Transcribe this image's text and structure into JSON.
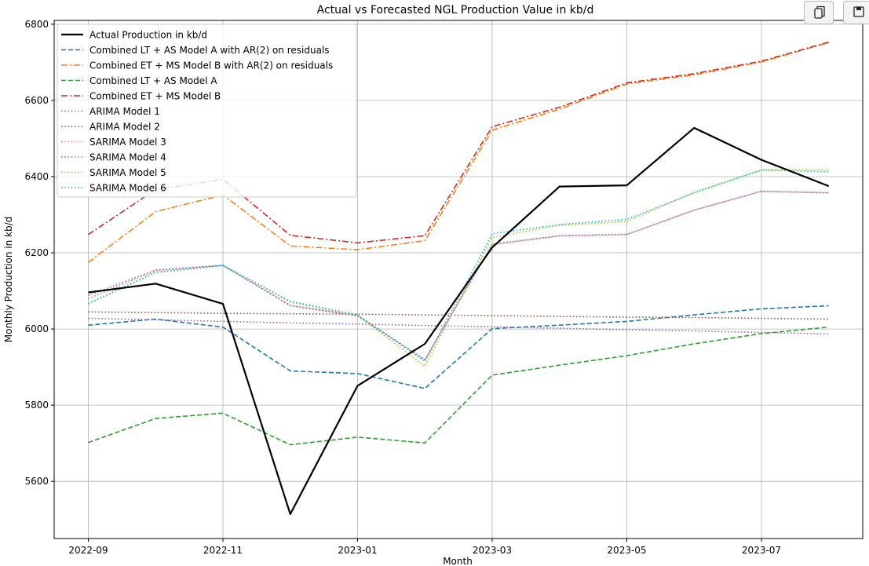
{
  "toolbar": {
    "buttons": [
      {
        "name": "copy-button",
        "icon": "copy-icon"
      },
      {
        "name": "save-button",
        "icon": "save-icon"
      }
    ]
  },
  "chart_data": {
    "type": "line",
    "title": "Actual vs Forecasted NGL Production Value in kb/d",
    "xlabel": "Month",
    "ylabel": "Monthly Production in kb/d",
    "x": [
      "2022-09",
      "2022-10",
      "2022-11",
      "2022-12",
      "2023-01",
      "2023-02",
      "2023-03",
      "2023-04",
      "2023-05",
      "2023-06",
      "2023-07",
      "2023-08"
    ],
    "x_ticks": [
      "2022-09",
      "2022-11",
      "2023-01",
      "2023-03",
      "2023-05",
      "2023-07"
    ],
    "ylim": [
      5450,
      6810
    ],
    "y_ticks": [
      5600,
      5800,
      6000,
      6200,
      6400,
      6600,
      6800
    ],
    "grid": true,
    "legend_position": "upper-left",
    "series": [
      {
        "name": "Actual Production in kb/d",
        "color": "#000000",
        "style": "solid",
        "width": 2.2,
        "values": [
          6096,
          6119,
          6066,
          5514,
          5851,
          5961,
          6214,
          6374,
          6377,
          6528,
          6444,
          6375
        ]
      },
      {
        "name": "Combined LT + AS Model A with AR(2) on residuals",
        "color": "#1f77b4",
        "style": "dashed",
        "width": 1.6,
        "values": [
          6010,
          6026,
          6005,
          5890,
          5883,
          5844,
          6001,
          6010,
          6020,
          6037,
          6053,
          6061
        ]
      },
      {
        "name": "Combined ET + MS Model B with AR(2) on residuals",
        "color": "#ff7f0e",
        "style": "dashdot",
        "width": 1.6,
        "values": [
          6175,
          6308,
          6352,
          6218,
          6208,
          6232,
          6522,
          6577,
          6643,
          6667,
          6701,
          6752
        ]
      },
      {
        "name": "Combined LT + AS Model A",
        "color": "#2ca02c",
        "style": "dashed",
        "width": 1.6,
        "values": [
          5702,
          5765,
          5779,
          5696,
          5716,
          5701,
          5879,
          5905,
          5930,
          5961,
          5988,
          6005
        ]
      },
      {
        "name": "Combined ET + MS Model B",
        "color": "#d62728",
        "style": "dashdot",
        "width": 1.6,
        "values": [
          6248,
          6366,
          6393,
          6246,
          6226,
          6245,
          6531,
          6582,
          6646,
          6670,
          6703,
          6753
        ]
      },
      {
        "name": "ARIMA Model 1",
        "color": "#9467bd",
        "style": "dotted",
        "width": 1.6,
        "values": [
          6028,
          6024,
          6020,
          6016,
          6013,
          6009,
          6006,
          6002,
          5998,
          5995,
          5991,
          5987
        ]
      },
      {
        "name": "ARIMA Model 2",
        "color": "#8c564b",
        "style": "dotted",
        "width": 1.6,
        "values": [
          6045,
          6043,
          6041,
          6040,
          6039,
          6037,
          6035,
          6033,
          6031,
          6030,
          6028,
          6026
        ]
      },
      {
        "name": "SARIMA Model 3",
        "color": "#e377c2",
        "style": "dotted",
        "width": 1.6,
        "values": [
          6080,
          6153,
          6167,
          6061,
          6034,
          5918,
          6221,
          6244,
          6247,
          6312,
          6362,
          6358
        ]
      },
      {
        "name": "SARIMA Model 4",
        "color": "#7f7f7f",
        "style": "dotted",
        "width": 1.6,
        "values": [
          6088,
          6155,
          6167,
          6062,
          6035,
          5920,
          6223,
          6245,
          6249,
          6312,
          6361,
          6357
        ]
      },
      {
        "name": "SARIMA Model 5",
        "color": "#bcbd22",
        "style": "dotted",
        "width": 1.6,
        "values": [
          6066,
          6148,
          6166,
          6070,
          6035,
          5902,
          6240,
          6272,
          6282,
          6359,
          6418,
          6418
        ]
      },
      {
        "name": "SARIMA Model 6",
        "color": "#17becf",
        "style": "dotted",
        "width": 1.6,
        "values": [
          6067,
          6149,
          6167,
          6073,
          6037,
          5915,
          6250,
          6274,
          6288,
          6357,
          6417,
          6413
        ]
      }
    ]
  }
}
